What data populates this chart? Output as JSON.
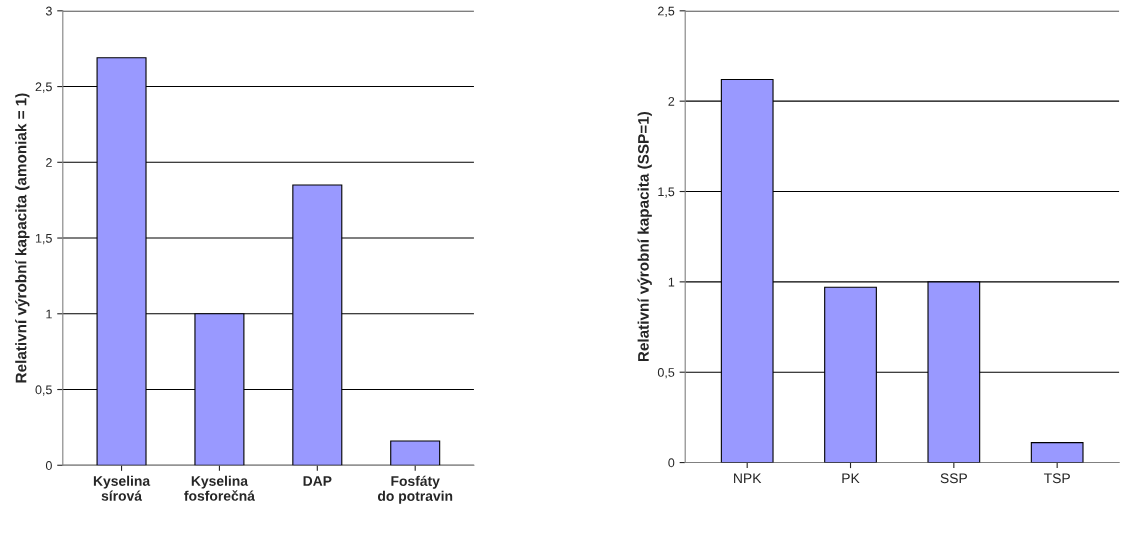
{
  "chart_data": [
    {
      "type": "bar",
      "ylabel": "Relativní výrobní kapacita (amoniak = 1)",
      "categories": [
        "Kyselina\nsírová",
        "Kyselina\nfosforečná",
        "DAP",
        "Fosfáty\ndo potravin"
      ],
      "values": [
        2.69,
        1.0,
        1.85,
        0.16
      ],
      "color": "#9999ff",
      "ylim": [
        0,
        3
      ],
      "yticks": [
        0,
        {
          "value": 0.5,
          "label": "0,5"
        },
        1,
        {
          "value": 1.5,
          "label": "1,5"
        },
        2,
        {
          "value": 2.5,
          "label": "2,5"
        },
        3
      ],
      "grid": "y"
    },
    {
      "type": "bar",
      "ylabel": "Relativní výrobní kapacita (SSP=1)",
      "categories": [
        "NPK",
        "PK",
        "SSP",
        "TSP"
      ],
      "values": [
        2.12,
        0.97,
        1.0,
        0.11
      ],
      "color": "#9999ff",
      "ylim": [
        0,
        2.5
      ],
      "yticks": [
        0,
        {
          "value": 0.5,
          "label": "0,5"
        },
        1,
        {
          "value": 1.5,
          "label": "1,5"
        },
        2,
        {
          "value": 2.5,
          "label": "2,5"
        }
      ],
      "grid": "y"
    }
  ]
}
